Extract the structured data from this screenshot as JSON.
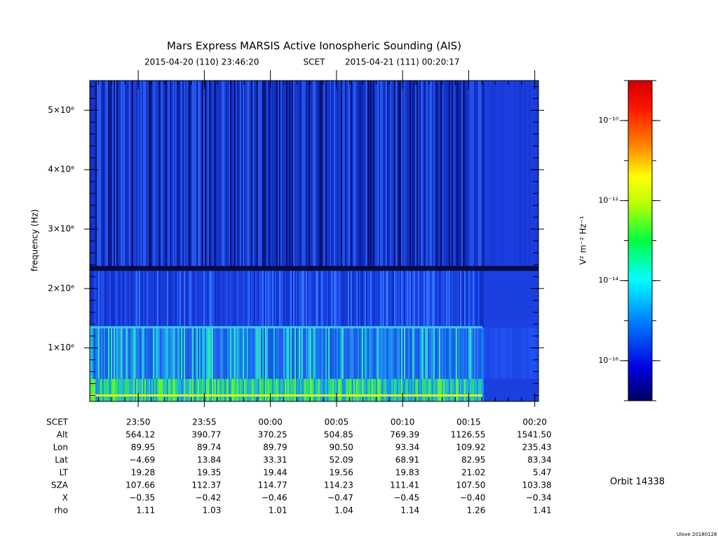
{
  "chart_data": {
    "type": "spectrogram",
    "title": "Mars Express MARSIS Active Ionospheric Sounding (AIS)",
    "start": "2015-04-20 (110) 23:46:20",
    "time_label": "SCET",
    "end": "2015-04-21 (111) 00:20:17",
    "y_label": "frequency (Hz)",
    "ylim": [
      100000,
      5500000
    ],
    "yticks": [
      {
        "value": 1000000,
        "label": "1×10⁶"
      },
      {
        "value": 2000000,
        "label": "2×10⁶"
      },
      {
        "value": 3000000,
        "label": "3×10⁶"
      },
      {
        "value": 4000000,
        "label": "4×10⁶"
      },
      {
        "value": 5000000,
        "label": "5×10⁶"
      }
    ],
    "xticks": [
      "23:50",
      "23:55",
      "00:00",
      "00:05",
      "00:10",
      "00:15",
      "00:20"
    ],
    "colorbar": {
      "label": "V² m⁻² Hz⁻¹",
      "clim": [
        1e-17,
        1e-09
      ],
      "log": true,
      "ticks": [
        {
          "value": 1e-10,
          "label": "10⁻¹⁰"
        },
        {
          "value": 1e-12,
          "label": "10⁻¹²"
        },
        {
          "value": 1e-14,
          "label": "10⁻¹⁴"
        },
        {
          "value": 1e-16,
          "label": "10⁻¹⁶"
        }
      ]
    },
    "ephemeris": {
      "labels": [
        "SCET",
        "Alt",
        "Lon",
        "Lat",
        "LT",
        "SZA",
        "X",
        "rho"
      ],
      "rows": [
        [
          "564.12",
          "390.77",
          "370.25",
          "504.85",
          "769.39",
          "1126.55",
          "1541.50"
        ],
        [
          "89.95",
          "89.74",
          "89.79",
          "90.50",
          "93.34",
          "109.92",
          "235.43"
        ],
        [
          "−4.69",
          "13.84",
          "33.31",
          "52.09",
          "68.91",
          "82.95",
          "83.34"
        ],
        [
          "19.28",
          "19.35",
          "19.44",
          "19.56",
          "19.83",
          "21.02",
          "5.47"
        ],
        [
          "107.66",
          "112.37",
          "114.77",
          "114.23",
          "111.41",
          "107.50",
          "103.38"
        ],
        [
          "−0.35",
          "−0.42",
          "−0.46",
          "−0.47",
          "−0.45",
          "−0.40",
          "−0.34"
        ],
        [
          "1.11",
          "1.03",
          "1.01",
          "1.04",
          "1.14",
          "1.26",
          "1.41"
        ]
      ]
    },
    "orbit": "Orbit 14338",
    "footer": "Ulove 20180126"
  }
}
